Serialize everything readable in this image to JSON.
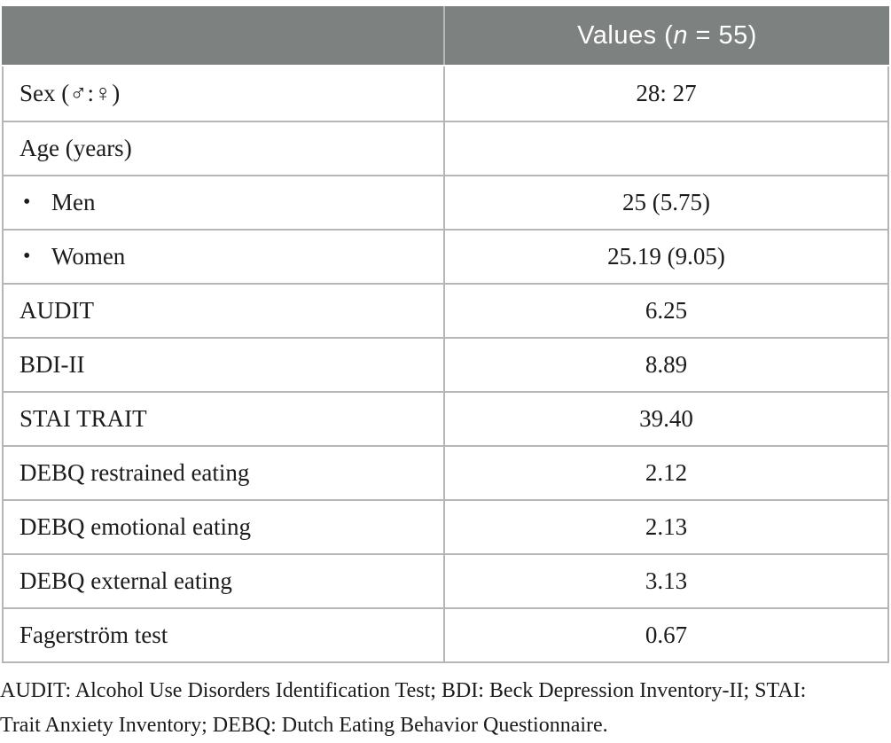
{
  "colors": {
    "header_bg": "#7d8180",
    "header_text": "#ffffff",
    "grid": "#b5b6b6",
    "text": "#1b1b1b"
  },
  "table": {
    "header": {
      "values_pre": "Values (",
      "values_n": "n",
      "values_post": " = 55)"
    },
    "bullet_char": "•",
    "rows": [
      {
        "label": "Sex (♂:♀)",
        "value": "28: 27",
        "bullet": false
      },
      {
        "label": "Age (years)",
        "value": "",
        "bullet": false
      },
      {
        "label": "Men",
        "value": "25 (5.75)",
        "bullet": true
      },
      {
        "label": "Women",
        "value": "25.19 (9.05)",
        "bullet": true
      },
      {
        "label": "AUDIT",
        "value": "6.25",
        "bullet": false
      },
      {
        "label": "BDI-II",
        "value": "8.89",
        "bullet": false
      },
      {
        "label": "STAI TRAIT",
        "value": "39.40",
        "bullet": false
      },
      {
        "label": "DEBQ restrained eating",
        "value": "2.12",
        "bullet": false
      },
      {
        "label": "DEBQ emotional eating",
        "value": "2.13",
        "bullet": false
      },
      {
        "label": "DEBQ external eating",
        "value": "3.13",
        "bullet": false
      },
      {
        "label": "Fagerström test",
        "value": "0.67",
        "bullet": false
      }
    ]
  },
  "footnote_lines": [
    "AUDIT: Alcohol Use Disorders Identification Test; BDI: Beck Depression Inventory-II; STAI:",
    "Trait Anxiety Inventory; DEBQ: Dutch Eating Behavior Questionnaire."
  ]
}
